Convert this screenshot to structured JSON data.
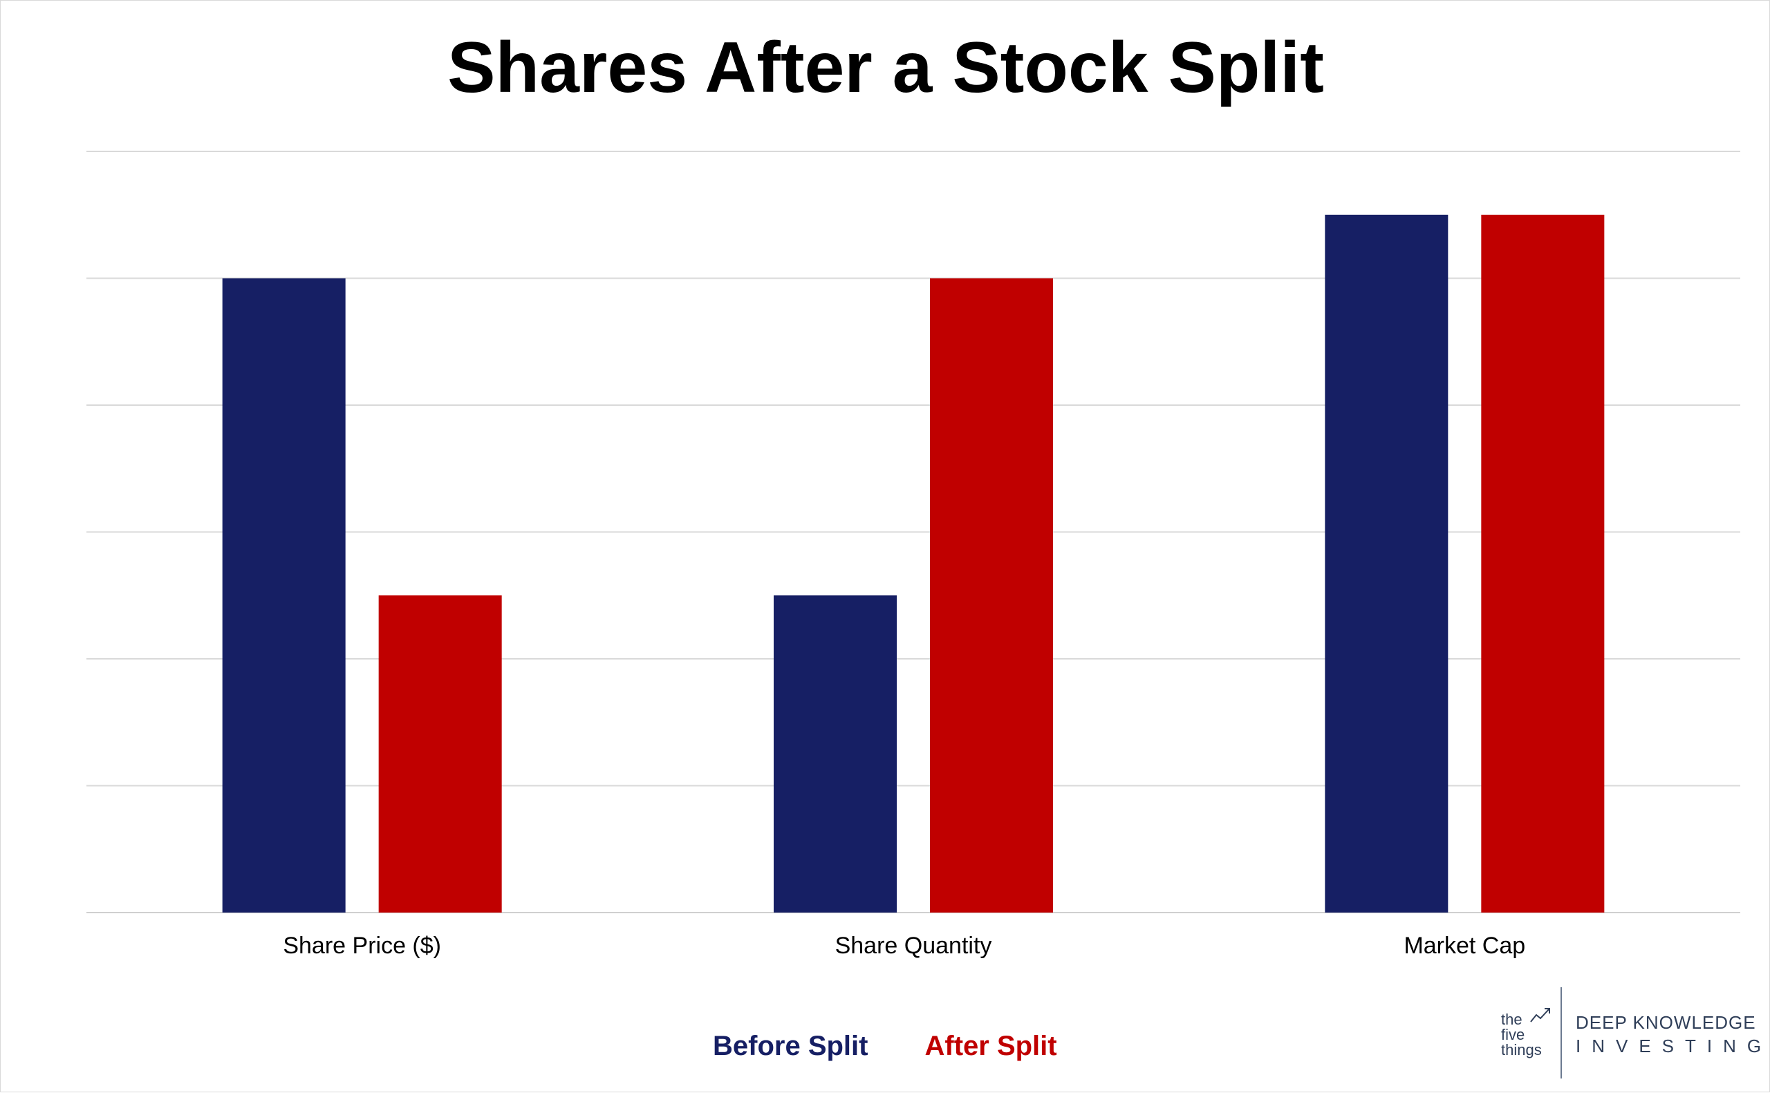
{
  "chart_data": {
    "type": "bar",
    "title": "Shares After a Stock Split",
    "categories": [
      "Share Price ($)",
      "Share Quantity",
      "Market Cap"
    ],
    "series": [
      {
        "name": "Before Split",
        "color": "#161f64",
        "values": [
          100,
          50,
          110
        ]
      },
      {
        "name": "After Split",
        "color": "#c00000",
        "values": [
          50,
          100,
          110
        ]
      }
    ],
    "ylim": [
      0,
      120
    ],
    "y_gridline_step": 20,
    "grid": true,
    "y_tick_labels_shown": false,
    "legend": "bottom-center",
    "xlabel": "",
    "ylabel": ""
  },
  "branding": {
    "small_text": [
      "the",
      "five",
      "things"
    ],
    "main_text": "DEEP KNOWLEDGE",
    "sub_text": "INVESTING",
    "color": "#2f3e58"
  }
}
